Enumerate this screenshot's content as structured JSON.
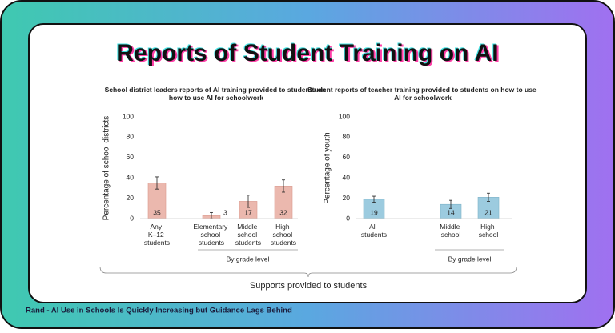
{
  "title": "Reports of Student Training on AI",
  "bracket_label": "Supports provided to students",
  "footer": "Rand - AI Use in Schools Is Quickly Increasing but Guidance Lags Behind",
  "chart_data": [
    {
      "type": "bar",
      "title": "School district leaders reports of AI training provided to students on how to use AI for schoolwork",
      "y_label": "Percentage of school districts",
      "categories": [
        "Any K–12 students",
        "Elementary school students",
        "Middle school students",
        "High school students"
      ],
      "values": [
        35,
        3,
        17,
        32
      ],
      "errors": [
        6,
        3,
        6,
        6
      ],
      "group_label": "By grade level",
      "color": "#ebb8ae",
      "ylim": [
        0,
        100
      ],
      "yticks": [
        0,
        20,
        40,
        60,
        80,
        100
      ]
    },
    {
      "type": "bar",
      "title": "Student reports of teacher training provided to students on how to use AI for schoolwork",
      "y_label": "Percentage of youth",
      "categories": [
        "All students",
        "Middle school",
        "High school"
      ],
      "values": [
        19,
        14,
        21
      ],
      "errors": [
        3,
        4,
        4
      ],
      "group_label": "By grade level",
      "color": "#9ccbdf",
      "ylim": [
        0,
        100
      ],
      "yticks": [
        0,
        20,
        40,
        60,
        80,
        100
      ]
    }
  ]
}
